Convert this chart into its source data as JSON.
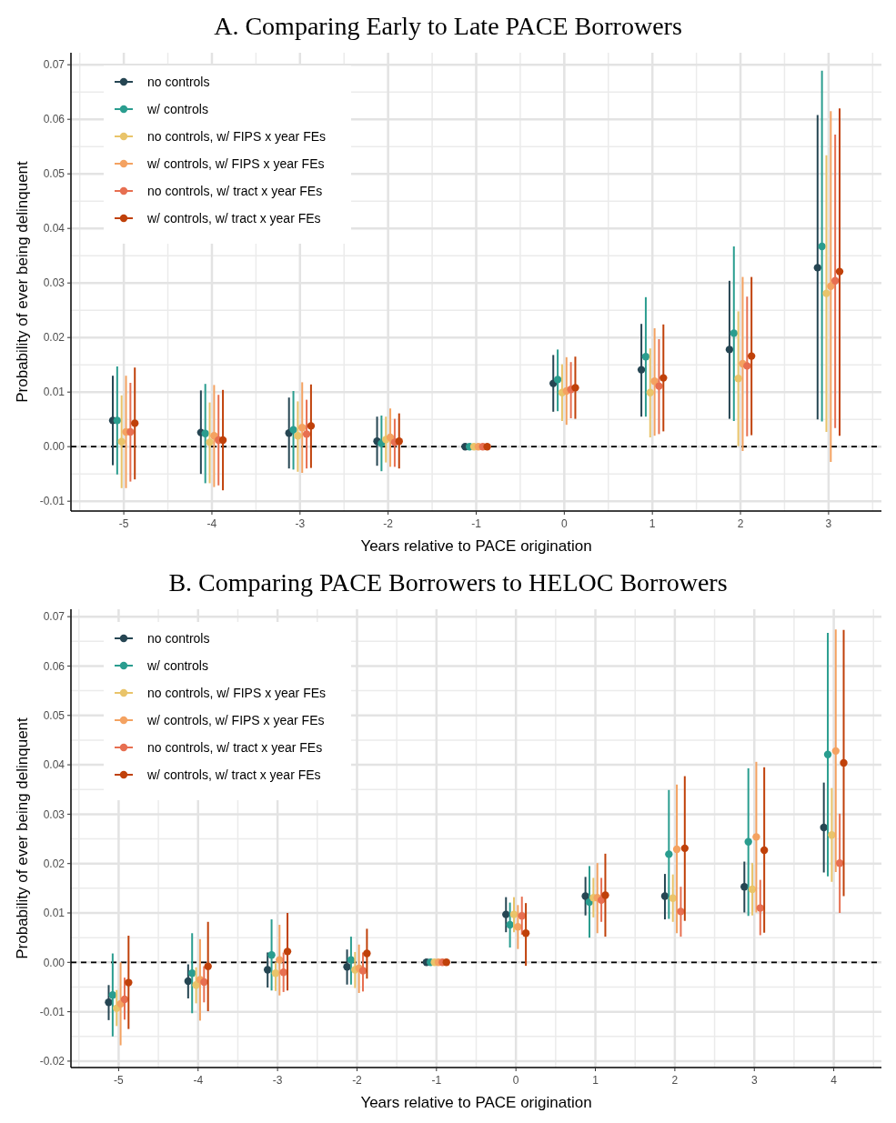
{
  "chart_data": [
    {
      "type": "scatter",
      "title": "A. Comparing Early to Late PACE Borrowers",
      "xlabel": "Years relative to PACE origination",
      "ylabel": "Probability of ever being delinquent",
      "categories": [
        "-5",
        "-4",
        "-3",
        "-2",
        "-1",
        "0",
        "1",
        "2",
        "3"
      ],
      "ylim": [
        -0.0118,
        0.0722
      ],
      "yticks": [
        {
          "value": -0.01,
          "label": "-0.01"
        },
        {
          "value": 0,
          "label": "0.00"
        },
        {
          "value": 0.01,
          "label": "0.01"
        },
        {
          "value": 0.02,
          "label": "0.02"
        },
        {
          "value": 0.03,
          "label": "0.03"
        },
        {
          "value": 0.04,
          "label": "0.04"
        },
        {
          "value": 0.05,
          "label": "0.05"
        },
        {
          "value": 0.06,
          "label": "0.06"
        },
        {
          "value": 0.07,
          "label": "0.07"
        }
      ],
      "grid": true,
      "legend": "top left",
      "marker": "circle",
      "ref_lines": [
        {
          "axis": "y",
          "value": 0,
          "color": "#000000",
          "line_style": "dashed"
        }
      ],
      "series": [
        {
          "name": "no controls",
          "color": "#264653",
          "values": [
            0.0048,
            0.0026,
            0.0025,
            0.001,
            0,
            0.0116,
            0.0141,
            0.0178,
            0.0328
          ],
          "errors": [
            [
              -0.0034,
              0.013
            ],
            [
              -0.005,
              0.0103
            ],
            [
              -0.004,
              0.009
            ],
            [
              -0.0035,
              0.0055
            ],
            null,
            [
              0.0064,
              0.0168
            ],
            [
              0.0055,
              0.0225
            ],
            [
              0.0051,
              0.0304
            ],
            [
              0.005,
              0.0608
            ]
          ]
        },
        {
          "name": "w/ controls",
          "color": "#2a9d8f",
          "values": [
            0.0048,
            0.0024,
            0.0031,
            0.0006,
            0,
            0.0123,
            0.0165,
            0.0208,
            0.0367
          ],
          "errors": [
            [
              -0.0051,
              0.0147
            ],
            [
              -0.0067,
              0.0115
            ],
            [
              -0.0042,
              0.0102
            ],
            [
              -0.0045,
              0.0057
            ],
            null,
            [
              0.0065,
              0.0178
            ],
            [
              0.0055,
              0.0274
            ],
            [
              0.0047,
              0.0367
            ],
            [
              0.0046,
              0.0689
            ]
          ]
        },
        {
          "name": "no controls, w/ FIPS x year FEs",
          "color": "#e9c46a",
          "values": [
            0.0009,
            0.0008,
            0.002,
            0.0013,
            0,
            0.0099,
            0.0099,
            0.0125,
            0.0281
          ],
          "errors": [
            [
              -0.0076,
              0.0094
            ],
            [
              -0.0067,
              0.0081
            ],
            [
              -0.0046,
              0.0083
            ],
            [
              -0.0029,
              0.0055
            ],
            null,
            [
              0.0047,
              0.0151
            ],
            [
              0.0017,
              0.018
            ],
            [
              0.0001,
              0.0248
            ],
            [
              0.0027,
              0.0534
            ]
          ]
        },
        {
          "name": "w/ controls, w/ FIPS x year FEs",
          "color": "#f4a261",
          "values": [
            0.0027,
            0.002,
            0.0035,
            0.0017,
            0,
            0.0102,
            0.012,
            0.0152,
            0.0294
          ],
          "errors": [
            [
              -0.0076,
              0.013
            ],
            [
              -0.0074,
              0.0113
            ],
            [
              -0.0048,
              0.0118
            ],
            [
              -0.0037,
              0.007
            ],
            null,
            [
              0.004,
              0.0164
            ],
            [
              0.002,
              0.0217
            ],
            [
              -0.0008,
              0.0311
            ],
            [
              -0.0028,
              0.0615
            ]
          ]
        },
        {
          "name": "no controls, w/ tract x year FEs",
          "color": "#e76f51",
          "values": [
            0.0027,
            0.0012,
            0.0023,
            0.0008,
            0,
            0.0105,
            0.0111,
            0.0148,
            0.0304
          ],
          "errors": [
            [
              -0.0064,
              0.0117
            ],
            [
              -0.0071,
              0.0095
            ],
            [
              -0.004,
              0.0086
            ],
            [
              -0.0037,
              0.0051
            ],
            null,
            [
              0.0052,
              0.0155
            ],
            [
              0.0023,
              0.0197
            ],
            [
              0.0019,
              0.0275
            ],
            [
              0.0034,
              0.0572
            ]
          ]
        },
        {
          "name": "w/ controls, w/ tract x year FEs",
          "color": "#c0410a",
          "values": [
            0.0043,
            0.0012,
            0.0038,
            0.001,
            0,
            0.0108,
            0.0126,
            0.0166,
            0.0321
          ],
          "errors": [
            [
              -0.006,
              0.0145
            ],
            [
              -0.008,
              0.0104
            ],
            [
              -0.0039,
              0.0114
            ],
            [
              -0.004,
              0.0061
            ],
            null,
            [
              0.0051,
              0.0165
            ],
            [
              0.0028,
              0.0224
            ],
            [
              0.0021,
              0.0311
            ],
            [
              0.002,
              0.062
            ]
          ]
        }
      ]
    },
    {
      "type": "scatter",
      "title": "B. Comparing PACE Borrowers to HELOC Borrowers",
      "xlabel": "Years relative to PACE origination",
      "ylabel": "Probability of ever being delinquent",
      "categories": [
        "-5",
        "-4",
        "-3",
        "-2",
        "-1",
        "0",
        "1",
        "2",
        "3",
        "4"
      ],
      "ylim": [
        -0.0213,
        0.0715
      ],
      "yticks": [
        {
          "value": -0.02,
          "label": "-0.02"
        },
        {
          "value": -0.01,
          "label": "-0.01"
        },
        {
          "value": 0,
          "label": "0.00"
        },
        {
          "value": 0.01,
          "label": "0.01"
        },
        {
          "value": 0.02,
          "label": "0.02"
        },
        {
          "value": 0.03,
          "label": "0.03"
        },
        {
          "value": 0.04,
          "label": "0.04"
        },
        {
          "value": 0.05,
          "label": "0.05"
        },
        {
          "value": 0.06,
          "label": "0.06"
        },
        {
          "value": 0.07,
          "label": "0.07"
        }
      ],
      "grid": true,
      "legend": "top left",
      "marker": "circle",
      "ref_lines": [
        {
          "axis": "y",
          "value": 0,
          "color": "#000000",
          "line_style": "dashed"
        }
      ],
      "series": [
        {
          "name": "no controls",
          "color": "#264653",
          "values": [
            -0.0081,
            -0.0038,
            -0.0015,
            -0.0009,
            0,
            0.0097,
            0.0134,
            0.0134,
            0.0153,
            0.0273
          ],
          "errors": [
            [
              -0.0117,
              -0.0046
            ],
            [
              -0.0073,
              -0.0004
            ],
            [
              -0.0051,
              0.002
            ],
            [
              -0.0045,
              0.0026
            ],
            null,
            [
              0.0061,
              0.0132
            ],
            [
              0.0095,
              0.0173
            ],
            [
              0.0087,
              0.0179
            ],
            [
              0.0101,
              0.0204
            ],
            [
              0.0182,
              0.0364
            ]
          ]
        },
        {
          "name": "w/ controls",
          "color": "#2a9d8f",
          "values": [
            -0.0066,
            -0.0022,
            0.0015,
            0.0005,
            0,
            0.0076,
            0.0122,
            0.0219,
            0.0244,
            0.0421
          ],
          "errors": [
            [
              -0.015,
              0.0018
            ],
            [
              -0.0103,
              0.0059
            ],
            [
              -0.0057,
              0.0087
            ],
            [
              -0.0045,
              0.0052
            ],
            null,
            [
              0.003,
              0.0121
            ],
            [
              0.005,
              0.0195
            ],
            [
              0.0088,
              0.0349
            ],
            [
              0.0094,
              0.0393
            ],
            [
              0.0174,
              0.0667
            ]
          ]
        },
        {
          "name": "no controls, w/ FIPS x year FEs",
          "color": "#e9c46a",
          "values": [
            -0.0093,
            -0.0046,
            -0.0022,
            -0.0015,
            0,
            0.0097,
            0.0131,
            0.013,
            0.0148,
            0.0258
          ],
          "errors": [
            [
              -0.0129,
              -0.0056
            ],
            [
              -0.0083,
              -0.001
            ],
            [
              -0.0058,
              0
            ],
            [
              -0.0052,
              0.0021
            ],
            null,
            [
              0.0061,
              0.0132
            ],
            [
              0.0091,
              0.0171
            ],
            [
              0.0082,
              0.0178
            ],
            [
              0.0095,
              0.0201
            ],
            [
              0.0163,
              0.0353
            ]
          ]
        },
        {
          "name": "w/ controls, w/ FIPS x year FEs",
          "color": "#f4a261",
          "values": [
            -0.0084,
            -0.0035,
            0.0005,
            -0.0012,
            0,
            0.0072,
            0.0131,
            0.0229,
            0.0254,
            0.0428
          ],
          "errors": [
            [
              -0.0168,
              0
            ],
            [
              -0.0118,
              0.0047
            ],
            [
              -0.0067,
              0.0076
            ],
            [
              -0.0062,
              0.0036
            ],
            null,
            [
              0.0027,
              0.0116
            ],
            [
              0.0059,
              0.0201
            ],
            [
              0.0059,
              0.036
            ],
            [
              0.0101,
              0.0406
            ],
            [
              0.0183,
              0.0674
            ]
          ]
        },
        {
          "name": "no controls, w/ tract x year FEs",
          "color": "#e76f51",
          "values": [
            -0.0075,
            -0.004,
            -0.002,
            -0.0017,
            0,
            0.0094,
            0.0126,
            0.0103,
            0.011,
            0.0201
          ],
          "errors": [
            [
              -0.0116,
              -0.0031
            ],
            [
              -0.0081,
              -0.0008
            ],
            [
              -0.006,
              0.002
            ],
            [
              -0.0059,
              0.002
            ],
            null,
            [
              0.0056,
              0.0133
            ],
            [
              0.0082,
              0.0171
            ],
            [
              0.0052,
              0.0153
            ],
            [
              0.0055,
              0.0167
            ],
            [
              0.01,
              0.0301
            ]
          ]
        },
        {
          "name": "w/ controls, w/ tract x year FEs",
          "color": "#c0410a",
          "values": [
            -0.0041,
            -0.0008,
            0.0022,
            0.0018,
            0,
            0.0059,
            0.0136,
            0.0231,
            0.0227,
            0.0404
          ],
          "errors": [
            [
              -0.0135,
              0.0054
            ],
            [
              -0.0099,
              0.0082
            ],
            [
              -0.0057,
              0.01
            ],
            [
              -0.0033,
              0.0068
            ],
            null,
            [
              -0.0007,
              0.012
            ],
            [
              0.0052,
              0.022
            ],
            [
              0.0084,
              0.0377
            ],
            [
              0.006,
              0.0395
            ],
            [
              0.0134,
              0.0673
            ]
          ]
        }
      ]
    }
  ]
}
